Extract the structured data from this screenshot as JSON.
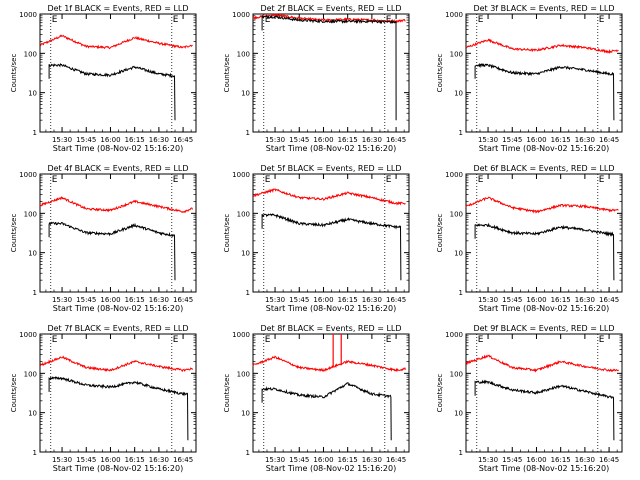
{
  "x_axis_title": "Start Time (08-Nov-02 15:16:20)",
  "y_axis_title": "Counts/sec",
  "x_tick_labels": [
    "15:30",
    "15:45",
    "16:00",
    "16:15",
    "16:30",
    "16:45"
  ],
  "y_tick_labels": [
    "1",
    "10",
    "100",
    "1000"
  ],
  "flag_label": "E",
  "colors": {
    "events": "#000000",
    "lld": "#ff0000",
    "axis": "#000000"
  },
  "chart_data": [
    {
      "type": "line",
      "title": "Det 1f BLACK = Events, RED = LLD",
      "x": [
        "15:16:20",
        "15:30",
        "15:45",
        "16:00",
        "16:15",
        "16:30",
        "16:45",
        "16:50"
      ],
      "xlim": [
        "15:16:20",
        "16:53"
      ],
      "ylim": [
        1,
        1000
      ],
      "yscale": "log",
      "markers": [
        "15:23",
        "16:38"
      ],
      "series": [
        {
          "name": "LLD",
          "color": "#ff0000",
          "start": "15:16:20",
          "end": "16:51",
          "values": [
            160,
            280,
            150,
            140,
            250,
            180,
            140,
            160
          ]
        },
        {
          "name": "Events",
          "color": "#000000",
          "start": "15:22",
          "end": "16:40",
          "values": [
            null,
            50,
            30,
            28,
            45,
            30,
            25,
            null
          ],
          "dropout": true
        }
      ]
    },
    {
      "type": "line",
      "title": "Det 2f BLACK = Events, RED = LLD",
      "x": [
        "15:16:20",
        "15:30",
        "15:45",
        "16:00",
        "16:15",
        "16:30",
        "16:45",
        "16:50"
      ],
      "xlim": [
        "15:16:20",
        "16:53"
      ],
      "ylim": [
        1,
        1000
      ],
      "yscale": "log",
      "markers": [
        "15:23",
        "16:38"
      ],
      "series": [
        {
          "name": "LLD",
          "color": "#ff0000",
          "start": "15:16:20",
          "end": "16:51",
          "values": [
            800,
            950,
            780,
            700,
            730,
            700,
            650,
            700
          ]
        },
        {
          "name": "Events",
          "color": "#000000",
          "start": "15:22",
          "end": "16:45",
          "values": [
            null,
            850,
            700,
            650,
            650,
            650,
            620,
            null
          ],
          "dropout": true
        }
      ]
    },
    {
      "type": "line",
      "title": "Det 3f BLACK = Events, RED = LLD",
      "x": [
        "15:16:20",
        "15:30",
        "15:45",
        "16:00",
        "16:15",
        "16:30",
        "16:45",
        "16:50"
      ],
      "xlim": [
        "15:16:20",
        "16:53"
      ],
      "ylim": [
        1,
        1000
      ],
      "yscale": "log",
      "markers": [
        "15:23",
        "16:38"
      ],
      "series": [
        {
          "name": "LLD",
          "color": "#ff0000",
          "start": "15:16:20",
          "end": "16:51",
          "values": [
            140,
            220,
            130,
            120,
            160,
            140,
            110,
            120
          ]
        },
        {
          "name": "Events",
          "color": "#000000",
          "start": "15:22",
          "end": "16:48",
          "values": [
            null,
            50,
            32,
            30,
            45,
            38,
            30,
            null
          ],
          "dropout": true
        }
      ]
    },
    {
      "type": "line",
      "title": "Det 4f BLACK = Events, RED = LLD",
      "x": [
        "15:16:20",
        "15:30",
        "15:45",
        "16:00",
        "16:15",
        "16:30",
        "16:45",
        "16:50"
      ],
      "xlim": [
        "15:16:20",
        "16:53"
      ],
      "ylim": [
        1,
        1000
      ],
      "yscale": "log",
      "markers": [
        "15:23",
        "16:38"
      ],
      "series": [
        {
          "name": "LLD",
          "color": "#ff0000",
          "start": "15:16:20",
          "end": "16:51",
          "values": [
            160,
            250,
            130,
            120,
            200,
            150,
            110,
            130
          ]
        },
        {
          "name": "Events",
          "color": "#000000",
          "start": "15:22",
          "end": "16:40",
          "values": [
            null,
            55,
            32,
            30,
            50,
            32,
            25,
            null
          ],
          "dropout": true
        }
      ]
    },
    {
      "type": "line",
      "title": "Det 5f BLACK = Events, RED = LLD",
      "x": [
        "15:16:20",
        "15:30",
        "15:45",
        "16:00",
        "16:15",
        "16:30",
        "16:45",
        "16:50"
      ],
      "xlim": [
        "15:16:20",
        "16:53"
      ],
      "ylim": [
        1,
        1000
      ],
      "yscale": "log",
      "markers": [
        "15:23",
        "16:38"
      ],
      "series": [
        {
          "name": "LLD",
          "color": "#ff0000",
          "start": "15:16:20",
          "end": "16:51",
          "values": [
            280,
            400,
            250,
            230,
            330,
            250,
            180,
            180
          ]
        },
        {
          "name": "Events",
          "color": "#000000",
          "start": "15:22",
          "end": "16:48",
          "values": [
            null,
            90,
            55,
            50,
            70,
            55,
            45,
            null
          ],
          "dropout": true
        }
      ]
    },
    {
      "type": "line",
      "title": "Det 6f BLACK = Events, RED = LLD",
      "x": [
        "15:16:20",
        "15:30",
        "15:45",
        "16:00",
        "16:15",
        "16:30",
        "16:45",
        "16:50"
      ],
      "xlim": [
        "15:16:20",
        "16:53"
      ],
      "ylim": [
        1,
        1000
      ],
      "yscale": "log",
      "markers": [
        "15:23",
        "16:38"
      ],
      "series": [
        {
          "name": "LLD",
          "color": "#ff0000",
          "start": "15:16:20",
          "end": "16:51",
          "values": [
            150,
            250,
            140,
            110,
            160,
            150,
            120,
            120
          ]
        },
        {
          "name": "Events",
          "color": "#000000",
          "start": "15:22",
          "end": "16:48",
          "values": [
            null,
            50,
            32,
            30,
            45,
            38,
            30,
            null
          ],
          "dropout": true
        }
      ]
    },
    {
      "type": "line",
      "title": "Det 7f BLACK = Events, RED = LLD",
      "x": [
        "15:16:20",
        "15:30",
        "15:45",
        "16:00",
        "16:15",
        "16:30",
        "16:45",
        "16:50"
      ],
      "xlim": [
        "15:16:20",
        "16:53"
      ],
      "ylim": [
        1,
        1000
      ],
      "yscale": "log",
      "markers": [
        "15:23",
        "16:38"
      ],
      "series": [
        {
          "name": "LLD",
          "color": "#ff0000",
          "start": "15:16:20",
          "end": "16:51",
          "values": [
            160,
            260,
            140,
            120,
            200,
            150,
            120,
            130
          ]
        },
        {
          "name": "Events",
          "color": "#000000",
          "start": "15:22",
          "end": "16:48",
          "values": [
            null,
            75,
            50,
            45,
            60,
            40,
            30,
            null
          ],
          "dropout": true
        }
      ]
    },
    {
      "type": "line",
      "title": "Det 8f BLACK = Events, RED = LLD",
      "x": [
        "15:16:20",
        "15:30",
        "15:45",
        "16:00",
        "16:15",
        "16:30",
        "16:45",
        "16:50"
      ],
      "xlim": [
        "15:16:20",
        "16:53"
      ],
      "ylim": [
        1,
        1000
      ],
      "yscale": "log",
      "markers": [
        "15:23",
        "16:38"
      ],
      "series": [
        {
          "name": "LLD",
          "color": "#ff0000",
          "start": "15:16:20",
          "end": "16:51",
          "values": [
            160,
            260,
            140,
            120,
            200,
            160,
            120,
            130
          ],
          "spikes": [
            [
              "16:06",
              1000
            ],
            [
              "16:11",
              1000
            ]
          ]
        },
        {
          "name": "Events",
          "color": "#000000",
          "start": "15:22",
          "end": "16:42",
          "values": [
            null,
            40,
            28,
            25,
            55,
            30,
            25,
            null
          ],
          "dropout": true
        }
      ]
    },
    {
      "type": "line",
      "title": "Det 9f BLACK = Events, RED = LLD",
      "x": [
        "15:16:20",
        "15:30",
        "15:45",
        "16:00",
        "16:15",
        "16:30",
        "16:45",
        "16:50"
      ],
      "xlim": [
        "15:16:20",
        "16:53"
      ],
      "ylim": [
        1,
        1000
      ],
      "yscale": "log",
      "markers": [
        "15:23",
        "16:38"
      ],
      "series": [
        {
          "name": "LLD",
          "color": "#ff0000",
          "start": "15:16:20",
          "end": "16:51",
          "values": [
            180,
            280,
            140,
            120,
            200,
            150,
            120,
            120
          ]
        },
        {
          "name": "Events",
          "color": "#000000",
          "start": "15:22",
          "end": "16:48",
          "values": [
            null,
            60,
            38,
            32,
            48,
            35,
            25,
            null
          ],
          "dropout": true
        }
      ]
    }
  ]
}
